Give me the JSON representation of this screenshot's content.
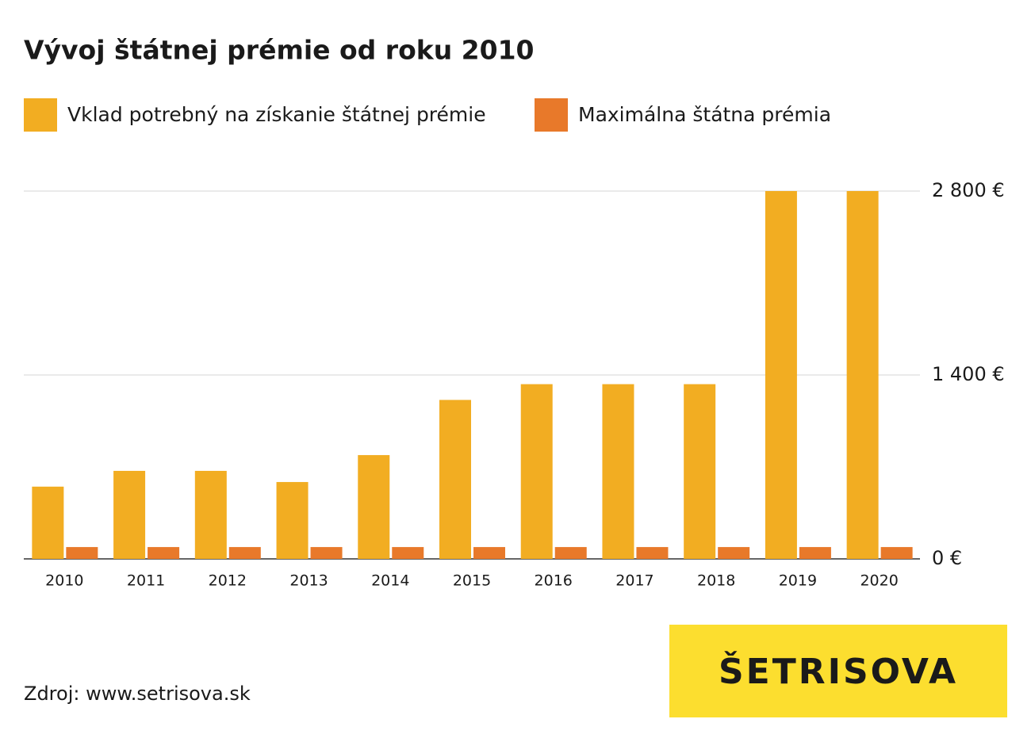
{
  "chart_data": {
    "type": "bar",
    "title": "Vývoj štátnej prémie od roku 2010",
    "categories": [
      "2010",
      "2011",
      "2012",
      "2013",
      "2014",
      "2015",
      "2016",
      "2017",
      "2018",
      "2019",
      "2020"
    ],
    "series": [
      {
        "name": "Vklad potrebný na získanie štátnej prémie",
        "color": "#f2ad22",
        "values": [
          550,
          670,
          670,
          585,
          790,
          1210,
          1330,
          1330,
          1330,
          2800,
          2800
        ]
      },
      {
        "name": "Maximálna štátna prémia",
        "color": "#e8792a",
        "values": [
          90,
          90,
          90,
          90,
          90,
          90,
          90,
          90,
          90,
          90,
          90
        ]
      }
    ],
    "ylim": [
      0,
      2800
    ],
    "yticks": [
      {
        "value": 0,
        "label": "0 €"
      },
      {
        "value": 1400,
        "label": "1 400 €"
      },
      {
        "value": 2800,
        "label": "2 800 €"
      }
    ],
    "grid": true,
    "source": "Zdroj: www.setrisova.sk",
    "logo": "ŠETRISOVA"
  }
}
